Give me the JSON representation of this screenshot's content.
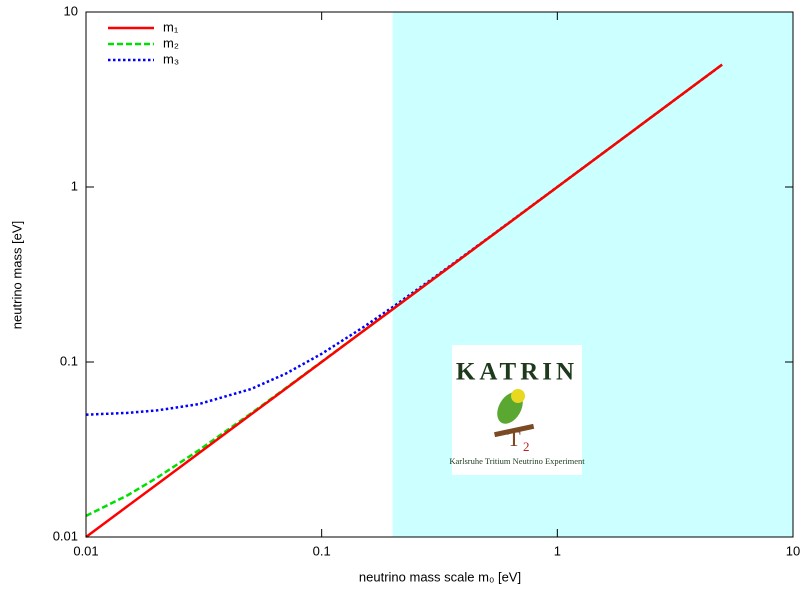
{
  "chart_data": {
    "type": "line",
    "x_label": "neutrino mass scale m₀ [eV]",
    "y_label": "neutrino mass [eV]",
    "x": [
      0.01,
      0.015,
      0.02,
      0.03,
      0.05,
      0.07,
      0.1,
      0.15,
      0.2,
      0.3,
      0.5,
      0.7,
      1,
      2,
      5
    ],
    "series": [
      {
        "name": "m₁",
        "color": "#ff0000",
        "style": "solid",
        "values": [
          0.01,
          0.015,
          0.02,
          0.03,
          0.05,
          0.07,
          0.1,
          0.15,
          0.2,
          0.3,
          0.5,
          0.7,
          1,
          2,
          5
        ]
      },
      {
        "name": "m₂",
        "color": "#00e000",
        "style": "dashed",
        "values": [
          0.0132,
          0.0173,
          0.0218,
          0.0312,
          0.0507,
          0.0705,
          0.1004,
          0.1502,
          0.2002,
          0.3001,
          0.5001,
          0.7001,
          1,
          2,
          5
        ]
      },
      {
        "name": "m₃",
        "color": "#0000ff",
        "style": "dotted",
        "values": [
          0.05,
          0.0512,
          0.0529,
          0.0574,
          0.07,
          0.0854,
          0.1114,
          0.1578,
          0.2059,
          0.304,
          0.5024,
          0.7017,
          1.0012,
          2.0006,
          5.0002
        ]
      }
    ],
    "xlim": [
      0.01,
      10
    ],
    "ylim": [
      0.01,
      10
    ],
    "xticks": [
      0.01,
      0.1,
      1,
      10
    ],
    "yticks": [
      0.01,
      0.1,
      1,
      10
    ],
    "log_x": true,
    "log_y": true,
    "legend": "top-left",
    "shaded_region": {
      "x": [
        0.2,
        10
      ],
      "color": "#ccffff"
    }
  },
  "logo": {
    "title": "KATRIN",
    "subtitle": "Karlsruhe Tritium Neutrino Experiment",
    "mark": "T",
    "mark_sub": "2"
  }
}
